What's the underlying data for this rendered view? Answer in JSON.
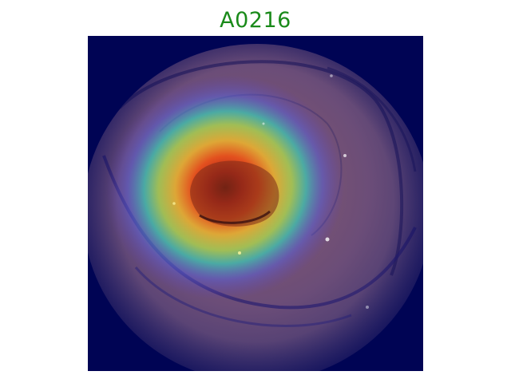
{
  "figure": {
    "title": "A0216",
    "title_color": "#1a8a1a",
    "overlay": {
      "type": "heatmap-overlay",
      "colormap": "jet",
      "background_color": "#000454"
    },
    "image_content": "endoscopic-view"
  }
}
